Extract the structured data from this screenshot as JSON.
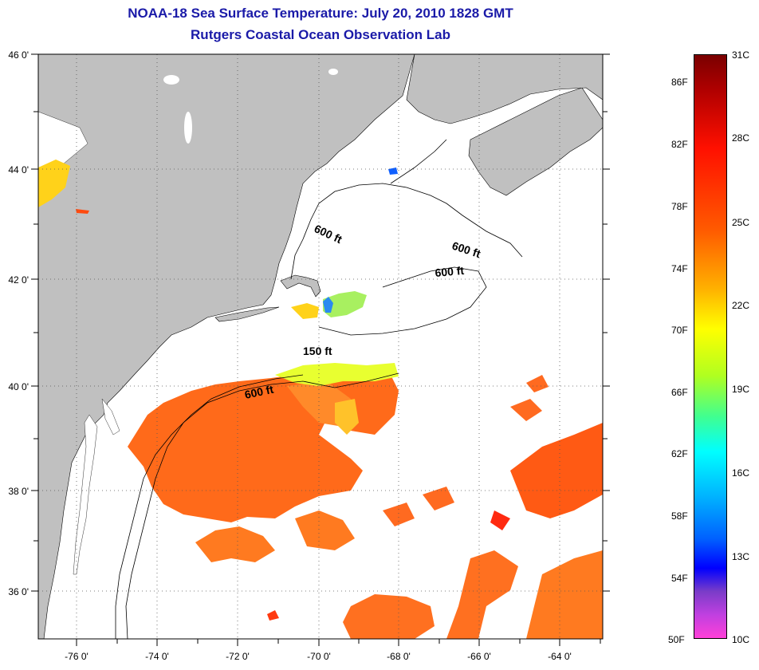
{
  "title": {
    "line1": "NOAA-18 Sea Surface Temperature:  July 20, 2010 1828 GMT",
    "line2": "Rutgers Coastal Ocean Observation Lab"
  },
  "map": {
    "lon_range": [
      -77,
      -63
    ],
    "lat_range": [
      35,
      46
    ],
    "x_ticks": [
      "-76 0'",
      "-74 0'",
      "-72 0'",
      "-70 0'",
      "-68 0'",
      "-66 0'",
      "-64 0'"
    ],
    "y_ticks": [
      "46 0'",
      "44 0'",
      "42 0'",
      "40 0'",
      "38 0'",
      "36 0'"
    ],
    "contour_labels": [
      "600 ft",
      "600 ft",
      "600 ft",
      "150 ft",
      "600 ft"
    ],
    "land_color": "#c0c0c0",
    "ocean_color": "#ffffff",
    "grid": "dotted"
  },
  "colorbar": {
    "fahrenheit_labels": [
      "86F",
      "82F",
      "78F",
      "74F",
      "70F",
      "66F",
      "62F",
      "58F",
      "54F",
      "50F"
    ],
    "celsius_labels": [
      "31C",
      "28C",
      "25C",
      "22C",
      "19C",
      "16C",
      "13C",
      "10C"
    ]
  }
}
